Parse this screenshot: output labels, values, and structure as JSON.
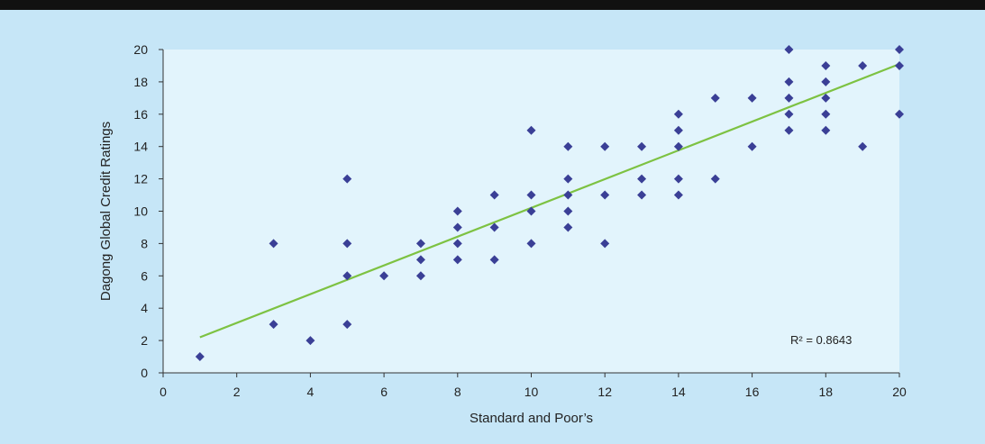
{
  "chart_data": {
    "type": "scatter",
    "title": "",
    "xlabel": "Standard and Poor’s",
    "ylabel": "Dagong Global Credit Ratings",
    "xlim": [
      0,
      20
    ],
    "ylim": [
      0,
      20
    ],
    "xticks": [
      0,
      2,
      4,
      6,
      8,
      10,
      12,
      14,
      16,
      18,
      20
    ],
    "yticks": [
      0,
      2,
      4,
      6,
      8,
      10,
      12,
      14,
      16,
      18,
      20
    ],
    "grid": false,
    "legend": "none",
    "colors": {
      "points": "#3a3f96",
      "trendline": "#7dc242",
      "plot_background": "#e2f4fc",
      "page_background": "#c6e6f7"
    },
    "series": [
      {
        "marker": "diamond",
        "points": [
          [
            1,
            1
          ],
          [
            3,
            8
          ],
          [
            3,
            3
          ],
          [
            4,
            2
          ],
          [
            5,
            12
          ],
          [
            5,
            8
          ],
          [
            5,
            6
          ],
          [
            5,
            3
          ],
          [
            6,
            6
          ],
          [
            7,
            8
          ],
          [
            7,
            7
          ],
          [
            7,
            6
          ],
          [
            8,
            10
          ],
          [
            8,
            9
          ],
          [
            8,
            8
          ],
          [
            8,
            7
          ],
          [
            9,
            11
          ],
          [
            9,
            9
          ],
          [
            9,
            7
          ],
          [
            10,
            15
          ],
          [
            10,
            11
          ],
          [
            10,
            10
          ],
          [
            10,
            8
          ],
          [
            11,
            14
          ],
          [
            11,
            12
          ],
          [
            11,
            11
          ],
          [
            11,
            10
          ],
          [
            11,
            9
          ],
          [
            12,
            14
          ],
          [
            12,
            11
          ],
          [
            12,
            8
          ],
          [
            13,
            14
          ],
          [
            13,
            12
          ],
          [
            13,
            11
          ],
          [
            14,
            16
          ],
          [
            14,
            15
          ],
          [
            14,
            14
          ],
          [
            14,
            12
          ],
          [
            14,
            11
          ],
          [
            15,
            17
          ],
          [
            15,
            12
          ],
          [
            16,
            17
          ],
          [
            16,
            14
          ],
          [
            17,
            20
          ],
          [
            17,
            18
          ],
          [
            17,
            17
          ],
          [
            17,
            16
          ],
          [
            17,
            15
          ],
          [
            18,
            19
          ],
          [
            18,
            18
          ],
          [
            18,
            17
          ],
          [
            18,
            16
          ],
          [
            18,
            15
          ],
          [
            19,
            19
          ],
          [
            19,
            14
          ],
          [
            20,
            20
          ],
          [
            20,
            19
          ],
          [
            20,
            16
          ]
        ]
      }
    ],
    "trendline": {
      "type": "linear",
      "from": [
        1,
        2.2
      ],
      "to": [
        20,
        19.1
      ],
      "r_squared_label": "R² = 0.8643"
    }
  }
}
